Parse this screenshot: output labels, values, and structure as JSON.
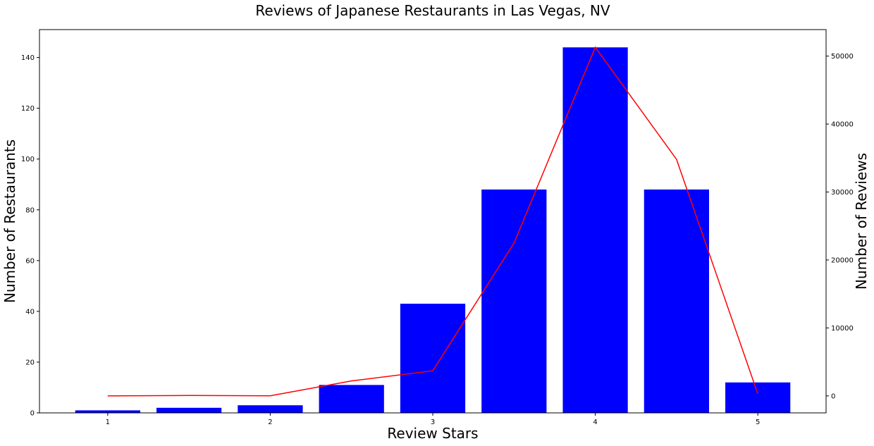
{
  "chart_data": {
    "type": "bar",
    "title": "Reviews of Japanese Restaurants in Las Vegas, NV",
    "xlabel": "Review Stars",
    "ylabel": "Number of Restaurants",
    "y2label": "Number of Reviews",
    "x": [
      1,
      1.5,
      2,
      2.5,
      3,
      3.5,
      4,
      4.5,
      5
    ],
    "xlim": [
      0.58,
      5.42
    ],
    "ylim": [
      0,
      151
    ],
    "y2lim": [
      -2500,
      53900
    ],
    "x_ticks": [
      1,
      2,
      3,
      4,
      5
    ],
    "y_ticks": [
      0,
      20,
      40,
      60,
      80,
      100,
      120,
      140
    ],
    "y2_ticks": [
      0,
      10000,
      20000,
      30000,
      40000,
      50000
    ],
    "grid": false,
    "series": [
      {
        "type": "bar",
        "axis": "left",
        "color": "#0000ff",
        "values": [
          1,
          2,
          3,
          11,
          43,
          88,
          144,
          88,
          12
        ]
      },
      {
        "type": "line",
        "axis": "right",
        "color": "#ff0000",
        "values": [
          0,
          60,
          20,
          2200,
          3700,
          22500,
          51300,
          34800,
          300
        ]
      }
    ]
  }
}
